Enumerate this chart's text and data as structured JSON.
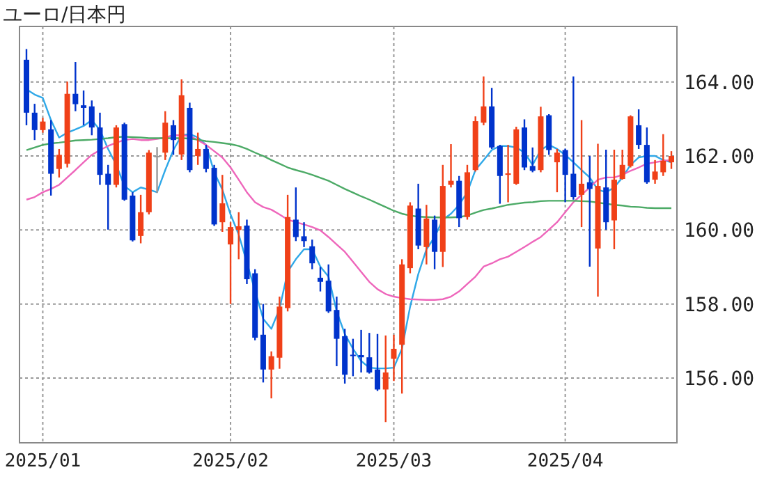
{
  "chart_data": {
    "type": "candlestick",
    "title": "ユーロ/日本円",
    "categories": [
      null,
      null,
      "2025/01",
      null,
      null,
      null,
      null,
      null,
      null,
      null,
      null,
      null,
      null,
      null,
      null,
      null,
      null,
      null,
      null,
      null,
      null,
      null,
      null,
      null,
      null,
      "2025/02",
      null,
      null,
      null,
      null,
      null,
      null,
      null,
      null,
      null,
      null,
      null,
      null,
      null,
      null,
      null,
      null,
      null,
      null,
      null,
      "2025/03",
      null,
      null,
      null,
      null,
      null,
      null,
      null,
      null,
      null,
      null,
      null,
      null,
      null,
      null,
      null,
      null,
      null,
      null,
      null,
      null,
      "2025/04",
      null,
      null,
      null,
      null,
      null,
      null,
      null,
      null,
      null,
      null,
      null,
      null,
      null
    ],
    "ohlc": [
      [
        164.6,
        164.89,
        162.83,
        163.17
      ],
      [
        163.17,
        163.41,
        162.43,
        162.7
      ],
      [
        162.7,
        163.03,
        162.63,
        162.93
      ],
      [
        162.72,
        162.97,
        160.93,
        161.52
      ],
      [
        161.65,
        162.19,
        161.42,
        162.03
      ],
      [
        161.79,
        164.01,
        161.69,
        163.68
      ],
      [
        163.68,
        164.54,
        163.21,
        163.4
      ],
      [
        163.37,
        163.77,
        162.83,
        163.3
      ],
      [
        163.34,
        163.5,
        162.56,
        162.77
      ],
      [
        162.77,
        163.17,
        161.22,
        161.49
      ],
      [
        161.52,
        161.76,
        160.01,
        161.22
      ],
      [
        161.22,
        162.83,
        161.15,
        162.77
      ],
      [
        162.86,
        162.9,
        160.79,
        160.82
      ],
      [
        160.93,
        161.02,
        159.69,
        159.72
      ],
      [
        159.84,
        160.95,
        159.64,
        160.48
      ],
      [
        160.48,
        162.16,
        160.42,
        162.09
      ],
      [
        162.0,
        162.24,
        161.0,
        162.0
      ],
      [
        162.09,
        163.21,
        161.89,
        162.9
      ],
      [
        162.83,
        162.97,
        162.03,
        162.43
      ],
      [
        162.04,
        164.07,
        161.89,
        163.64
      ],
      [
        163.3,
        163.44,
        161.56,
        161.62
      ],
      [
        162.0,
        162.63,
        161.76,
        162.19
      ],
      [
        162.19,
        162.3,
        161.56,
        161.65
      ],
      [
        161.68,
        161.76,
        160.11,
        160.15
      ],
      [
        160.21,
        161.49,
        159.95,
        160.72
      ],
      [
        159.61,
        160.21,
        158.0,
        160.08
      ],
      [
        160.0,
        160.48,
        159.21,
        160.1
      ],
      [
        160.12,
        160.28,
        158.54,
        158.67
      ],
      [
        158.83,
        158.94,
        157.02,
        157.09
      ],
      [
        157.17,
        158.0,
        155.88,
        156.23
      ],
      [
        156.23,
        156.72,
        155.45,
        156.59
      ],
      [
        156.55,
        158.2,
        156.25,
        157.93
      ],
      [
        157.89,
        160.95,
        157.8,
        160.35
      ],
      [
        160.28,
        161.15,
        159.7,
        159.81
      ],
      [
        159.83,
        160.21,
        159.54,
        159.7
      ],
      [
        159.56,
        159.74,
        158.94,
        159.1
      ],
      [
        158.71,
        159.0,
        158.34,
        158.6
      ],
      [
        158.63,
        159.07,
        157.76,
        157.8
      ],
      [
        157.84,
        158.2,
        156.32,
        157.06
      ],
      [
        157.13,
        157.33,
        155.85,
        156.09
      ],
      [
        156.63,
        157.06,
        156.05,
        156.6
      ],
      [
        156.62,
        157.3,
        156.15,
        156.56
      ],
      [
        156.56,
        157.22,
        156.12,
        156.15
      ],
      [
        156.23,
        157.19,
        155.65,
        155.69
      ],
      [
        155.69,
        157.15,
        154.81,
        156.15
      ],
      [
        156.52,
        157.17,
        155.92,
        156.79
      ],
      [
        156.9,
        159.21,
        155.58,
        159.07
      ],
      [
        158.97,
        160.75,
        158.83,
        160.66
      ],
      [
        160.58,
        161.25,
        159.48,
        159.58
      ],
      [
        159.54,
        160.68,
        159.07,
        160.31
      ],
      [
        160.28,
        160.39,
        158.94,
        159.41
      ],
      [
        159.41,
        161.76,
        159.0,
        161.19
      ],
      [
        161.22,
        162.32,
        161.15,
        161.33
      ],
      [
        161.33,
        161.46,
        160.08,
        160.32
      ],
      [
        160.35,
        161.76,
        160.28,
        161.56
      ],
      [
        161.62,
        163.07,
        161.58,
        162.94
      ],
      [
        162.9,
        164.15,
        162.83,
        163.34
      ],
      [
        163.34,
        163.84,
        162.19,
        162.23
      ],
      [
        162.27,
        162.3,
        160.71,
        161.46
      ],
      [
        161.49,
        162.3,
        160.75,
        161.53
      ],
      [
        161.25,
        162.79,
        161.22,
        162.72
      ],
      [
        162.77,
        162.99,
        161.62,
        161.69
      ],
      [
        161.73,
        162.23,
        161.56,
        161.6
      ],
      [
        161.62,
        163.33,
        161.56,
        163.07
      ],
      [
        163.1,
        163.13,
        162.03,
        162.16
      ],
      [
        161.83,
        162.19,
        161.02,
        162.09
      ],
      [
        162.16,
        162.2,
        160.75,
        161.49
      ],
      [
        161.52,
        164.15,
        160.82,
        160.89
      ],
      [
        160.95,
        162.97,
        160.08,
        161.25
      ],
      [
        161.29,
        162.0,
        159.01,
        161.11
      ],
      [
        159.5,
        162.33,
        158.2,
        161.19
      ],
      [
        161.15,
        162.17,
        160.01,
        160.21
      ],
      [
        160.26,
        162.17,
        159.48,
        161.36
      ],
      [
        161.38,
        162.17,
        161.36,
        161.76
      ],
      [
        161.73,
        163.1,
        161.69,
        163.07
      ],
      [
        162.83,
        163.26,
        162.19,
        162.3
      ],
      [
        162.3,
        162.77,
        161.25,
        161.29
      ],
      [
        161.36,
        161.89,
        161.25,
        161.58
      ],
      [
        161.56,
        162.59,
        161.46,
        161.87
      ],
      [
        161.83,
        162.13,
        161.65,
        162.0
      ]
    ],
    "colors": [
      "#0033cc",
      "#0033cc",
      "#f04018",
      "#0033cc",
      "#f04018",
      "#f04018",
      "#0033cc",
      "#0033cc",
      "#0033cc",
      "#0033cc",
      "#0033cc",
      "#f04018",
      "#0033cc",
      "#0033cc",
      "#f04018",
      "#f04018",
      "#999999",
      "#f04018",
      "#0033cc",
      "#f04018",
      "#0033cc",
      "#f04018",
      "#0033cc",
      "#0033cc",
      "#f04018",
      "#f04018",
      "#f04018",
      "#0033cc",
      "#0033cc",
      "#0033cc",
      "#f04018",
      "#f04018",
      "#f04018",
      "#0033cc",
      "#0033cc",
      "#0033cc",
      "#0033cc",
      "#0033cc",
      "#0033cc",
      "#0033cc",
      "#0033cc",
      "#0033cc",
      "#0033cc",
      "#0033cc",
      "#f04018",
      "#f04018",
      "#f04018",
      "#f04018",
      "#0033cc",
      "#f04018",
      "#0033cc",
      "#f04018",
      "#f04018",
      "#0033cc",
      "#f04018",
      "#f04018",
      "#f04018",
      "#0033cc",
      "#0033cc",
      "#f04018",
      "#f04018",
      "#0033cc",
      "#0033cc",
      "#f04018",
      "#0033cc",
      "#f04018",
      "#0033cc",
      "#0033cc",
      "#f04018",
      "#0033cc",
      "#f04018",
      "#0033cc",
      "#f04018",
      "#f04018",
      "#f04018",
      "#0033cc",
      "#0033cc",
      "#f04018",
      "#f04018",
      "#f04018"
    ],
    "series": [
      {
        "type": "line",
        "color": "#2fa8e8",
        "values": [
          163.8,
          163.66,
          163.57,
          162.97,
          162.5,
          162.63,
          162.72,
          162.81,
          162.97,
          162.7,
          162.19,
          161.76,
          161.19,
          161.02,
          161.15,
          161.09,
          161.02,
          161.62,
          162.16,
          162.56,
          162.59,
          162.5,
          162.3,
          161.56,
          161.09,
          160.42,
          159.88,
          null,
          null,
          157.6,
          157.33,
          157.87,
          158.87,
          159.21,
          159.48,
          159.48,
          159.01,
          158.74,
          157.8,
          157.19,
          156.79,
          156.46,
          156.28,
          156.26,
          156.26,
          156.28,
          156.79,
          157.93,
          158.81,
          159.48,
          159.81,
          160.28,
          160.44,
          160.68,
          161.02,
          161.62,
          161.89,
          162.16,
          162.27,
          162.27,
          162.23,
          162.09,
          161.76,
          162.16,
          162.3,
          162.19,
          162.03,
          161.83,
          161.62,
          161.42,
          161.09,
          161.02,
          161.15,
          161.42,
          161.76,
          161.96,
          162.0,
          162.0,
          161.89,
          161.83
        ]
      },
      {
        "type": "line",
        "color": "#ee66bb",
        "values": [
          160.82,
          160.89,
          161.02,
          161.11,
          161.22,
          161.42,
          161.62,
          161.83,
          162.03,
          162.16,
          162.27,
          162.36,
          162.43,
          162.46,
          162.43,
          162.43,
          162.46,
          162.5,
          162.56,
          162.56,
          162.54,
          162.43,
          162.3,
          162.13,
          161.96,
          161.69,
          161.36,
          161.02,
          160.75,
          160.62,
          160.55,
          160.42,
          160.28,
          160.21,
          160.15,
          160.08,
          159.99,
          159.81,
          159.61,
          159.41,
          159.14,
          158.87,
          158.6,
          158.4,
          158.27,
          158.2,
          158.16,
          158.13,
          158.12,
          158.11,
          158.11,
          158.13,
          158.2,
          158.34,
          158.54,
          158.74,
          159.01,
          159.1,
          159.21,
          159.28,
          159.41,
          159.54,
          159.68,
          159.81,
          160.01,
          160.21,
          160.48,
          160.75,
          160.95,
          161.15,
          161.36,
          161.42,
          161.42,
          161.49,
          161.6,
          161.69,
          161.79,
          161.83,
          161.87,
          161.89
        ]
      },
      {
        "type": "line",
        "color": "#4caa66",
        "values": [
          162.16,
          162.23,
          162.3,
          162.34,
          162.36,
          162.39,
          162.42,
          162.43,
          162.44,
          162.46,
          162.48,
          162.51,
          162.52,
          162.51,
          162.5,
          162.48,
          162.48,
          162.48,
          162.48,
          162.48,
          162.47,
          162.44,
          162.4,
          162.38,
          162.35,
          162.32,
          162.27,
          162.19,
          162.09,
          162.0,
          161.89,
          161.79,
          161.69,
          161.62,
          161.56,
          161.49,
          161.41,
          161.33,
          161.22,
          161.11,
          161.01,
          160.91,
          160.82,
          160.72,
          160.62,
          160.52,
          160.44,
          160.39,
          160.36,
          160.35,
          160.34,
          160.34,
          160.34,
          160.35,
          160.39,
          160.47,
          160.54,
          160.58,
          160.63,
          160.68,
          160.71,
          160.74,
          160.75,
          160.78,
          160.79,
          160.79,
          160.79,
          160.79,
          160.78,
          160.77,
          160.74,
          160.71,
          160.68,
          160.66,
          160.63,
          160.62,
          160.6,
          160.59,
          160.59,
          160.59
        ]
      }
    ],
    "ylim": [
      154.25,
      165.5
    ],
    "yticks": [
      {
        "value": 156,
        "label": "156.00"
      },
      {
        "value": 158,
        "label": "158.00"
      },
      {
        "value": 160,
        "label": "160.00"
      },
      {
        "value": 162,
        "label": "162.00"
      },
      {
        "value": 164,
        "label": "164.00"
      }
    ],
    "grid": true
  }
}
